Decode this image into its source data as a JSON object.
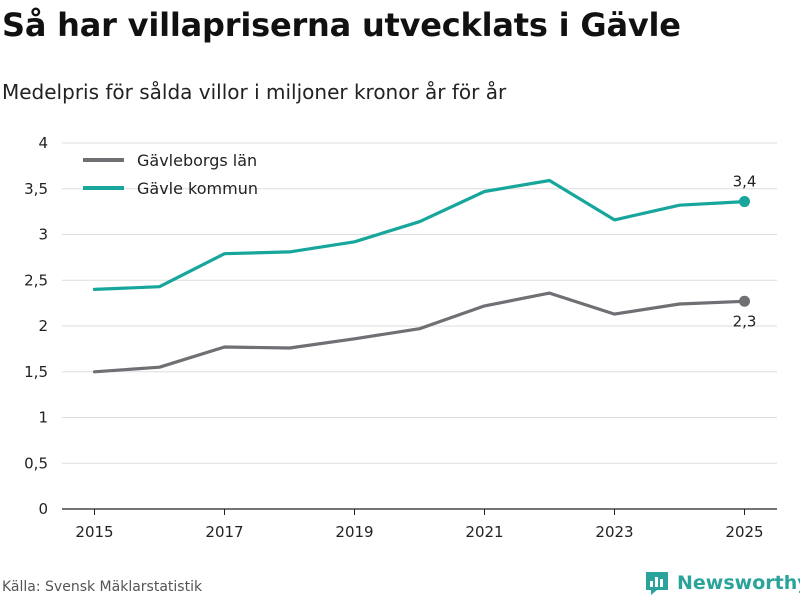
{
  "title": "Så har villapriserna utvecklats i Gävle",
  "subtitle": "Medelpris för sålda villor i miljoner kronor år för år",
  "source": "Källa: Svensk Mäklarstatistik",
  "brand": "Newsworthy",
  "colors": {
    "gray_series": "#6f6f74",
    "teal_series": "#17a69b",
    "grid": "#dddddd",
    "brand": "#2aa39a"
  },
  "chart_data": {
    "type": "line",
    "title": "Så har villapriserna utvecklats i Gävle",
    "ylabel": "Medelpris för sålda villor i miljoner kronor år för år",
    "x": [
      2015,
      2016,
      2017,
      2018,
      2019,
      2020,
      2021,
      2022,
      2023,
      2024,
      2025
    ],
    "xlim": [
      2014.5,
      2025.5
    ],
    "ylim": [
      0,
      4
    ],
    "x_ticks": [
      2015,
      2017,
      2019,
      2021,
      2023,
      2025
    ],
    "x_tick_labels": [
      "2015",
      "2017",
      "2019",
      "2021",
      "2023",
      "2025"
    ],
    "y_ticks": [
      0,
      0.5,
      1,
      1.5,
      2,
      2.5,
      3,
      3.5,
      4
    ],
    "y_tick_labels": [
      "0",
      "0,5",
      "1",
      "1,5",
      "2",
      "2,5",
      "3",
      "3,5",
      "4"
    ],
    "grid": true,
    "legend_position": "top-left",
    "series": [
      {
        "name": "Gävleborgs län",
        "color": "#6f6f74",
        "values": [
          1.5,
          1.55,
          1.77,
          1.76,
          1.86,
          1.97,
          2.22,
          2.36,
          2.13,
          2.24,
          2.27
        ],
        "end_label": "2,3",
        "end_label_position": "below"
      },
      {
        "name": "Gävle kommun",
        "color": "#17a69b",
        "values": [
          2.4,
          2.43,
          2.79,
          2.81,
          2.92,
          3.14,
          3.47,
          3.59,
          3.16,
          3.32,
          3.36
        ],
        "end_label": "3,4",
        "end_label_position": "above"
      }
    ]
  }
}
